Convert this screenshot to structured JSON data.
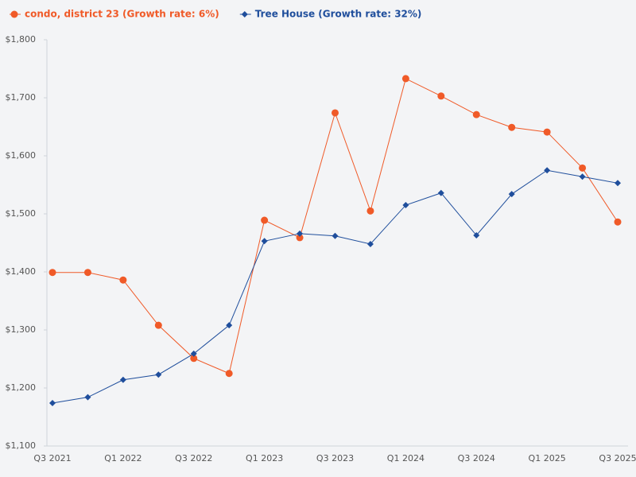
{
  "chart_data": {
    "type": "line",
    "categories": [
      "Q3 2021",
      null,
      "Q1 2022",
      null,
      "Q3 2022",
      null,
      "Q1 2023",
      null,
      "Q3 2023",
      null,
      "Q1 2024",
      null,
      "Q3 2024",
      null,
      "Q1 2025",
      null,
      "Q3 2025"
    ],
    "series": [
      {
        "name": "condo, district 23 (Growth rate: 6%)",
        "color": "#f05a28",
        "marker": "circle",
        "values": [
          1399,
          1399,
          1386,
          1308,
          1251,
          1225,
          1489,
          1459,
          1674,
          1505,
          1733,
          1703,
          1671,
          1649,
          1641,
          1579,
          1486
        ]
      },
      {
        "name": "Tree House (Growth rate: 32%)",
        "color": "#1f4e9c",
        "marker": "diamond",
        "values": [
          1174,
          1184,
          1214,
          1223,
          1259,
          1308,
          1453,
          1466,
          1462,
          1448,
          1515,
          1536,
          1463,
          1534,
          1575,
          1564,
          1553
        ]
      }
    ],
    "ylim": [
      1100,
      1800
    ],
    "yticks": [
      {
        "value": 1100,
        "label": "$1,100"
      },
      {
        "value": 1200,
        "label": "$1,200"
      },
      {
        "value": 1300,
        "label": "$1,300"
      },
      {
        "value": 1400,
        "label": "$1,400"
      },
      {
        "value": 1500,
        "label": "$1,500"
      },
      {
        "value": 1600,
        "label": "$1,600"
      },
      {
        "value": 1700,
        "label": "$1,700"
      },
      {
        "value": 1800,
        "label": "$1,800"
      }
    ],
    "grid": false,
    "legend": "top"
  }
}
